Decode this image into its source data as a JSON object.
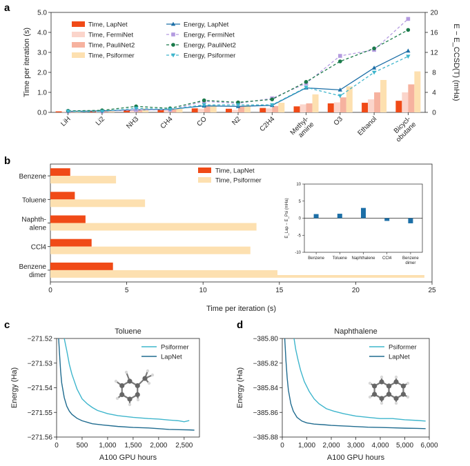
{
  "panel_labels": {
    "a": "a",
    "b": "b",
    "c": "c",
    "d": "d"
  },
  "chart_data": [
    {
      "id": "a",
      "type": "bar",
      "categories": [
        "LiH",
        "Li2",
        "NH3",
        "CH4",
        "CO",
        "N2",
        "C2H4",
        "Methyl-\namine",
        "O3",
        "Ethanol",
        "Bicycl-\nobutane"
      ],
      "ylabel": "Time per iteration (s)",
      "ylim": [
        0,
        5.0
      ],
      "yticks": [
        0,
        1.0,
        2.0,
        3.0,
        4.0,
        5.0
      ],
      "y2label": "E − E_CCSD(T) (mHa)",
      "y2lim": [
        0,
        20
      ],
      "y2ticks": [
        0,
        4,
        8,
        12,
        16,
        20
      ],
      "bar_series": [
        {
          "name": "Time, LapNet",
          "color": "#f04a17",
          "values": [
            0.05,
            0.05,
            0.13,
            0.15,
            0.2,
            0.18,
            0.22,
            0.3,
            0.45,
            0.48,
            0.58
          ]
        },
        {
          "name": "Time, FermiNet",
          "color": "#fbd5cb",
          "values": [
            0.05,
            0.07,
            0.12,
            0.1,
            0.18,
            0.12,
            0.2,
            0.4,
            0.5,
            0.65,
            1.0
          ]
        },
        {
          "name": "Time, PauliNet2",
          "color": "#f6b29f",
          "values": [
            0.05,
            0.07,
            0.15,
            0.15,
            0.3,
            0.3,
            0.32,
            0.45,
            0.75,
            1.0,
            1.4
          ]
        },
        {
          "name": "Time, Psiformer",
          "color": "#fde0b0",
          "values": [
            0.08,
            0.12,
            0.2,
            0.18,
            0.35,
            0.35,
            0.48,
            0.9,
            1.3,
            1.62,
            2.05
          ]
        }
      ],
      "line_series": [
        {
          "name": "Energy, LapNet",
          "color": "#1c6fa7",
          "dash": "",
          "marker": "triangle-up",
          "values": [
            0.2,
            0.3,
            0.5,
            0.6,
            1.3,
            1.2,
            1.4,
            4.9,
            4.5,
            8.9,
            12.3
          ]
        },
        {
          "name": "Energy, FermiNet",
          "color": "#b49be0",
          "dash": "4,3",
          "marker": "square",
          "values": [
            0.2,
            0.2,
            0.5,
            0.5,
            2.2,
            1.8,
            2.8,
            5.8,
            11.3,
            12.5,
            18.7
          ]
        },
        {
          "name": "Energy, PauliNet2",
          "color": "#1a7a4a",
          "dash": "4,3",
          "marker": "circle",
          "values": [
            0.3,
            0.4,
            1.2,
            0.8,
            2.4,
            2.0,
            2.6,
            6.1,
            10.2,
            12.8,
            16.5
          ]
        },
        {
          "name": "Energy, Psiformer",
          "color": "#3db5cc",
          "dash": "4,3",
          "marker": "triangle-down",
          "values": [
            0.2,
            0.2,
            0.8,
            0.6,
            1.5,
            1.5,
            1.5,
            5.0,
            3.3,
            8.0,
            11.2
          ]
        }
      ]
    },
    {
      "id": "b",
      "type": "bar",
      "orientation": "horizontal",
      "categories": [
        "Benzene",
        "Toluene",
        "Naphth-\nalene",
        "CCl4",
        "Benzene\ndimer"
      ],
      "xlabel": "Time per iteration (s)",
      "xlim": [
        0,
        25
      ],
      "xticks": [
        0,
        5,
        10,
        15,
        20,
        25
      ],
      "series": [
        {
          "name": "Time, LapNet",
          "color": "#f04a17",
          "values": [
            1.3,
            1.6,
            2.3,
            2.7,
            4.1
          ]
        },
        {
          "name": "Time, Psiformer",
          "color": "#fde0b0",
          "values": [
            4.3,
            6.2,
            13.5,
            13.1,
            24.5
          ]
        }
      ],
      "inset": {
        "type": "bar",
        "categories": [
          "Benzene",
          "Toluene",
          "Naphthalene",
          "CCl4",
          "Benzene\ndimer"
        ],
        "values": [
          1.2,
          1.3,
          3.0,
          -0.8,
          -1.5
        ],
        "color": "#1c6fa7",
        "ylabel": "E_Lap − E_Psi (mHa)",
        "ylim": [
          -10,
          10
        ],
        "yticks": [
          -10,
          -5,
          0,
          5,
          10
        ]
      }
    },
    {
      "id": "c",
      "type": "line",
      "title": "Toluene",
      "xlabel": "A100 GPU hours",
      "ylabel": "Energy (Ha)",
      "xlim": [
        0,
        2800
      ],
      "xticks": [
        0,
        500,
        1000,
        1500,
        2000,
        2500
      ],
      "xtick_labels": [
        "0",
        "500",
        "1,000",
        "1,500",
        "2,000",
        "2,500"
      ],
      "ylim": [
        -271.56,
        -271.52
      ],
      "yticks": [
        -271.56,
        -271.55,
        -271.54,
        -271.53,
        -271.52
      ],
      "ytick_labels": [
        "−271.56",
        "−271.55",
        "−271.54",
        "−271.53",
        "−271.52"
      ],
      "series": [
        {
          "name": "Psiformer",
          "color": "#3db5cc",
          "x": [
            150,
            200,
            250,
            300,
            350,
            400,
            500,
            600,
            700,
            800,
            1000,
            1200,
            1500,
            1800,
            2000,
            2200,
            2400,
            2500,
            2600
          ],
          "y": [
            -271.52,
            -271.525,
            -271.5305,
            -271.5345,
            -271.5375,
            -271.5405,
            -271.5445,
            -271.5465,
            -271.548,
            -271.5492,
            -271.5505,
            -271.5513,
            -271.552,
            -271.5525,
            -271.5527,
            -271.5531,
            -271.5534,
            -271.5538,
            -271.5533
          ]
        },
        {
          "name": "LapNet",
          "color": "#1f6b8f",
          "x": [
            40,
            60,
            80,
            100,
            150,
            200,
            250,
            300,
            400,
            500,
            700,
            900,
            1200,
            1500,
            1800,
            2000,
            2200,
            2400,
            2600,
            2700
          ],
          "y": [
            -271.52,
            -271.527,
            -271.5335,
            -271.538,
            -271.544,
            -271.5475,
            -271.5495,
            -271.5508,
            -271.5524,
            -271.5534,
            -271.5546,
            -271.5551,
            -271.5557,
            -271.5561,
            -271.5563,
            -271.5566,
            -271.5569,
            -271.557,
            -271.5571,
            -271.5572
          ]
        }
      ]
    },
    {
      "id": "d",
      "type": "line",
      "title": "Naphthalene",
      "xlabel": "A100 GPU hours",
      "ylabel": "Energy (Ha)",
      "xlim": [
        0,
        6000
      ],
      "xticks": [
        0,
        1000,
        2000,
        3000,
        4000,
        5000,
        6000
      ],
      "xtick_labels": [
        "0",
        "1,000",
        "2,000",
        "3,000",
        "4,000",
        "5,000",
        "6,000"
      ],
      "ylim": [
        -385.88,
        -385.8
      ],
      "yticks": [
        -385.88,
        -385.86,
        -385.84,
        -385.82,
        -385.8
      ],
      "ytick_labels": [
        "−385.88",
        "−385.86",
        "−385.84",
        "−385.82",
        "−385.80"
      ],
      "series": [
        {
          "name": "Psiformer",
          "color": "#3db5cc",
          "x": [
            480,
            550,
            650,
            750,
            900,
            1100,
            1300,
            1500,
            1800,
            2100,
            2500,
            3000,
            3500,
            4000,
            4500,
            5000,
            5500,
            5850
          ],
          "y": [
            -385.8,
            -385.809,
            -385.818,
            -385.826,
            -385.835,
            -385.843,
            -385.849,
            -385.853,
            -385.857,
            -385.859,
            -385.861,
            -385.863,
            -385.864,
            -385.865,
            -385.865,
            -385.866,
            -385.8665,
            -385.867
          ]
        },
        {
          "name": "LapNet",
          "color": "#1f6b8f",
          "x": [
            100,
            150,
            200,
            250,
            350,
            450,
            600,
            800,
            1000,
            1300,
            1700,
            2000,
            2500,
            3000,
            3500,
            4000,
            4500,
            5000,
            5500,
            5850
          ],
          "y": [
            -385.8,
            -385.818,
            -385.832,
            -385.842,
            -385.853,
            -385.859,
            -385.864,
            -385.867,
            -385.8685,
            -385.8695,
            -385.87,
            -385.8705,
            -385.871,
            -385.8715,
            -385.872,
            -385.8722,
            -385.8725,
            -385.8728,
            -385.873,
            -385.8732
          ]
        }
      ]
    }
  ]
}
